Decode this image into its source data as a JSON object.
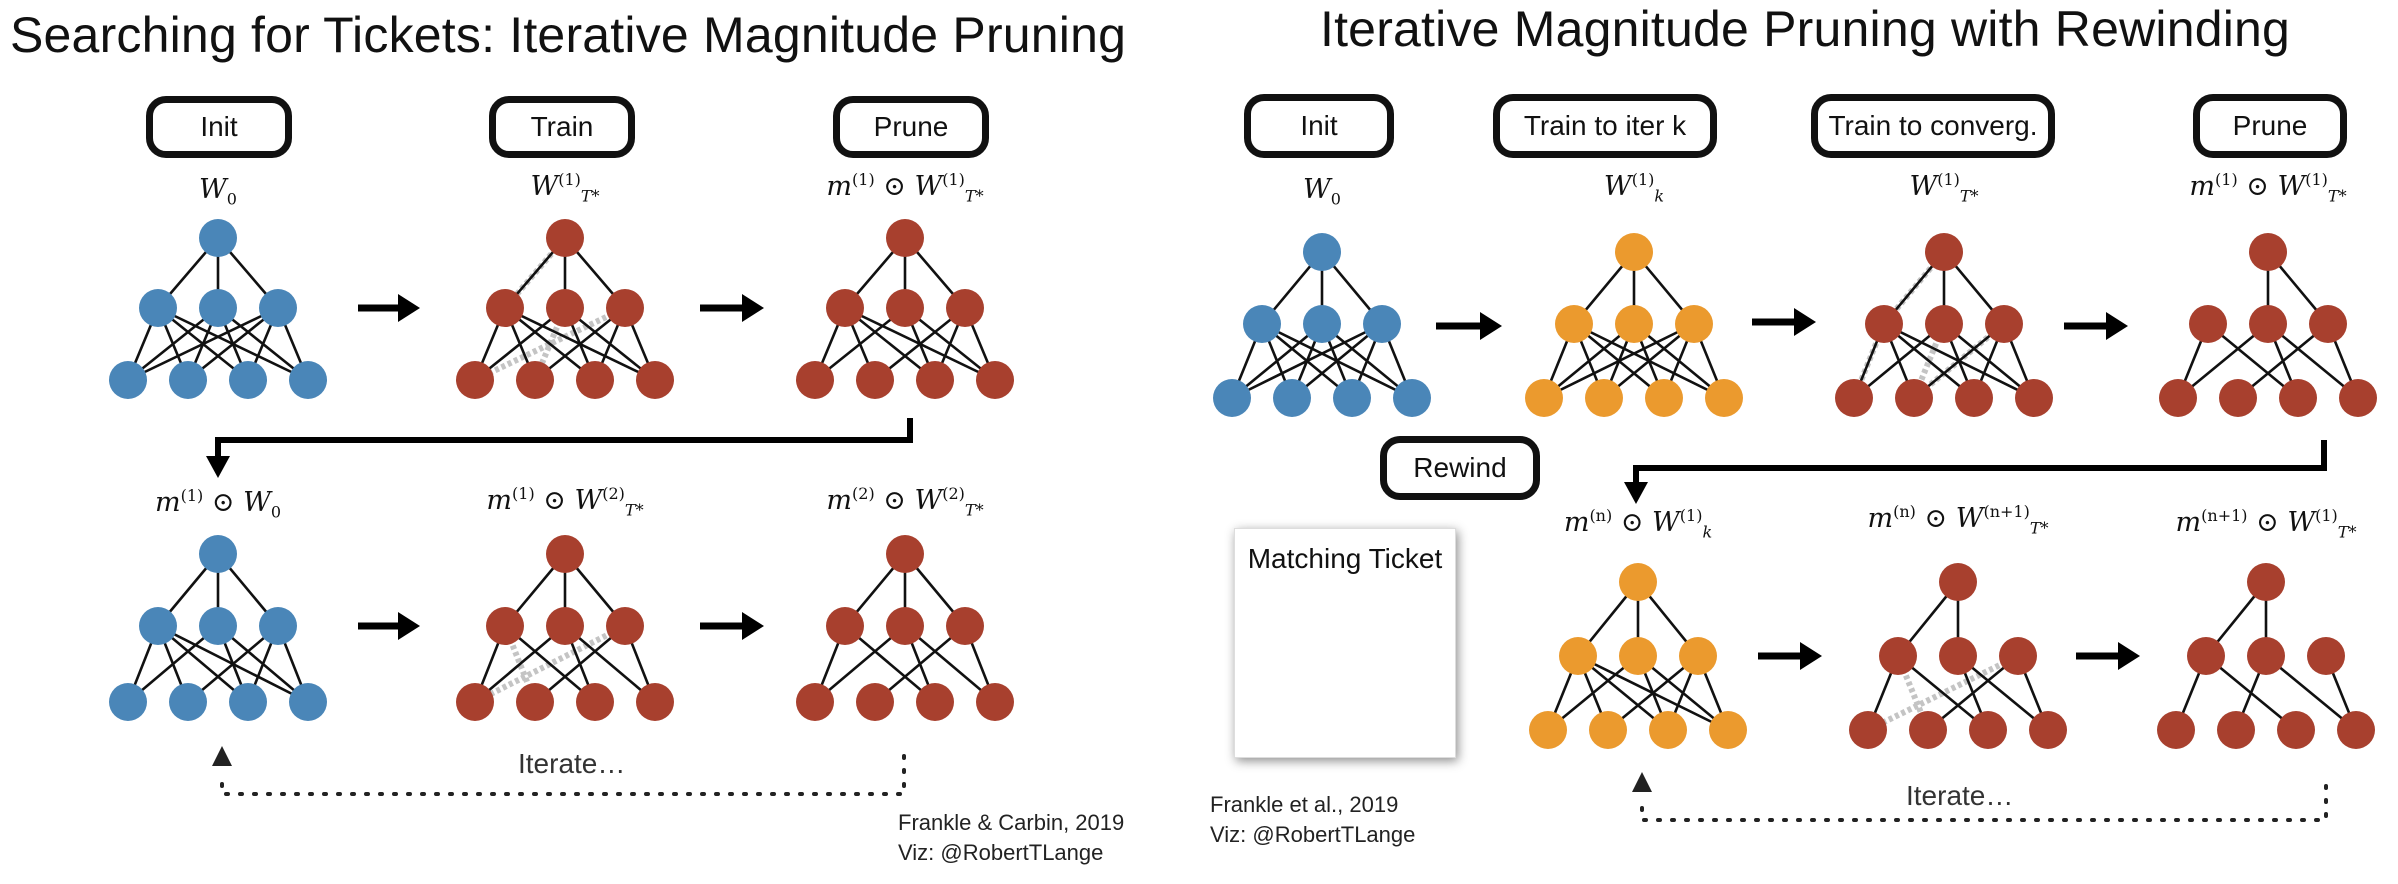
{
  "left": {
    "title": "Searching for Tickets: Iterative Magnitude Pruning",
    "boxes": [
      "Init",
      "Train",
      "Prune"
    ],
    "labels": {
      "w0": "W",
      "w0_sub": "0",
      "train_sup": "(1)",
      "train_sub": "T*",
      "prune_m_sup": "(1)",
      "prune_w_sup": "(1)",
      "prune_w_sub": "T*",
      "r2a_m_sup": "(1)",
      "r2a_sub": "0",
      "r2b_m_sup": "(1)",
      "r2b_w_sup": "(2)",
      "r2b_w_sub": "T*",
      "r2c_m_sup": "(2)",
      "r2c_w_sup": "(2)",
      "r2c_w_sub": "T*"
    },
    "iterate": "Iterate…",
    "credit_1": "Frankle & Carbin, 2019",
    "credit_2": "Viz: @RobertTLange"
  },
  "right": {
    "title": "Iterative Magnitude Pruning with Rewinding",
    "boxes": [
      "Init",
      "Train to iter k",
      "Train to converg.",
      "Prune",
      "Rewind"
    ],
    "labels": {
      "w0_sub": "0",
      "wk_sup": "(1)",
      "wk_sub": "k",
      "wt_sup": "(1)",
      "wt_sub": "T*",
      "prune_m_sup": "(1)",
      "prune_w_sup": "(1)",
      "prune_w_sub": "T*",
      "r2a_m_sup": "(n)",
      "r2a_w_sup": "(1)",
      "r2a_w_sub": "k",
      "r2b_m_sup": "(n)",
      "r2b_w_sup": "(n+1)",
      "r2b_w_sub": "T*",
      "r2c_m_sup": "(n+1)",
      "r2c_w_sup": "(1)",
      "r2c_w_sub": "T*"
    },
    "matching_ticket": "Matching Ticket",
    "iterate": "Iterate…",
    "credit_1": "Frankle et al., 2019",
    "credit_2": "Viz: @RobertTLange"
  },
  "colors": {
    "init_blue": "#4a86b8",
    "trained_red": "#a8402e",
    "rewound_orange": "#eb9a2e",
    "pruned_edge": "#c4c4c4",
    "edge": "#111111"
  }
}
